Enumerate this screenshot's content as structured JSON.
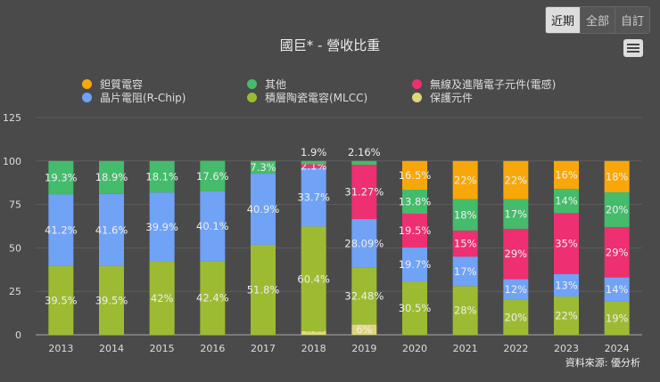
{
  "range_buttons": [
    "近期",
    "全部",
    "自訂"
  ],
  "selected_range": "近期",
  "source": "資料來源: 優分析",
  "chart_data": {
    "type": "bar",
    "stacked": true,
    "title": "國巨* - 營收比重",
    "categories": [
      "2013",
      "2014",
      "2015",
      "2016",
      "2017",
      "2018",
      "2019",
      "2020",
      "2021",
      "2022",
      "2023",
      "2024"
    ],
    "ylim": [
      0,
      125
    ],
    "yticks": [
      0,
      25,
      50,
      75,
      100,
      125
    ],
    "grid": true,
    "legend": "top",
    "series": [
      {
        "name": "保護元件",
        "color": "#ded67c",
        "values": [
          null,
          null,
          null,
          null,
          null,
          1.9,
          6,
          null,
          null,
          null,
          null,
          null
        ]
      },
      {
        "name": "積層陶瓷電容(MLCC)",
        "color": "#9dbb32",
        "values": [
          39.5,
          39.5,
          42,
          42.4,
          51.8,
          60.4,
          32.48,
          30.5,
          28,
          20,
          22,
          19
        ]
      },
      {
        "name": "晶片電阻(R-Chip)",
        "color": "#70a2f5",
        "values": [
          41.2,
          41.6,
          39.9,
          40.1,
          40.9,
          33.7,
          28.09,
          19.7,
          17,
          12,
          13,
          14
        ]
      },
      {
        "name": "無線及進階電子元件(電感)",
        "color": "#ee2f72",
        "values": [
          null,
          null,
          null,
          null,
          null,
          2.1,
          31.27,
          19.5,
          15,
          29,
          35,
          29
        ]
      },
      {
        "name": "其他",
        "color": "#45bb6c",
        "values": [
          19.3,
          18.9,
          18.1,
          17.6,
          7.3,
          1.9,
          2.16,
          13.8,
          18,
          17,
          14,
          20
        ]
      },
      {
        "name": "鉭質電容",
        "color": "#f8a70a",
        "values": [
          null,
          null,
          null,
          null,
          null,
          null,
          null,
          16.5,
          22,
          22,
          16,
          18
        ]
      }
    ],
    "legend_order": [
      5,
      4,
      3,
      2,
      1,
      0
    ],
    "labels": [
      [
        "",
        "39.5%",
        "41.2%",
        "",
        "19.3%",
        ""
      ],
      [
        "",
        "39.5%",
        "41.6%",
        "",
        "18.9%",
        ""
      ],
      [
        "",
        "42%",
        "39.9%",
        "",
        "18.1%",
        ""
      ],
      [
        "",
        "42.4%",
        "40.1%",
        "",
        "17.6%",
        ""
      ],
      [
        "",
        "51.8%",
        "40.9%",
        "",
        "7.3%",
        ""
      ],
      [
        "1.9%",
        "60.4%",
        "33.7%",
        "2.1%",
        "1.9%",
        ""
      ],
      [
        "6%",
        "32.48%",
        "28.09%",
        "31.27%",
        "2.16%",
        ""
      ],
      [
        "",
        "30.5%",
        "19.7%",
        "19.5%",
        "13.8%",
        "16.5%"
      ],
      [
        "",
        "28%",
        "17%",
        "15%",
        "18%",
        "22%"
      ],
      [
        "",
        "20%",
        "12%",
        "29%",
        "17%",
        "22%"
      ],
      [
        "",
        "22%",
        "13%",
        "35%",
        "14%",
        "16%"
      ],
      [
        "",
        "19%",
        "14%",
        "29%",
        "20%",
        "18%"
      ]
    ]
  }
}
